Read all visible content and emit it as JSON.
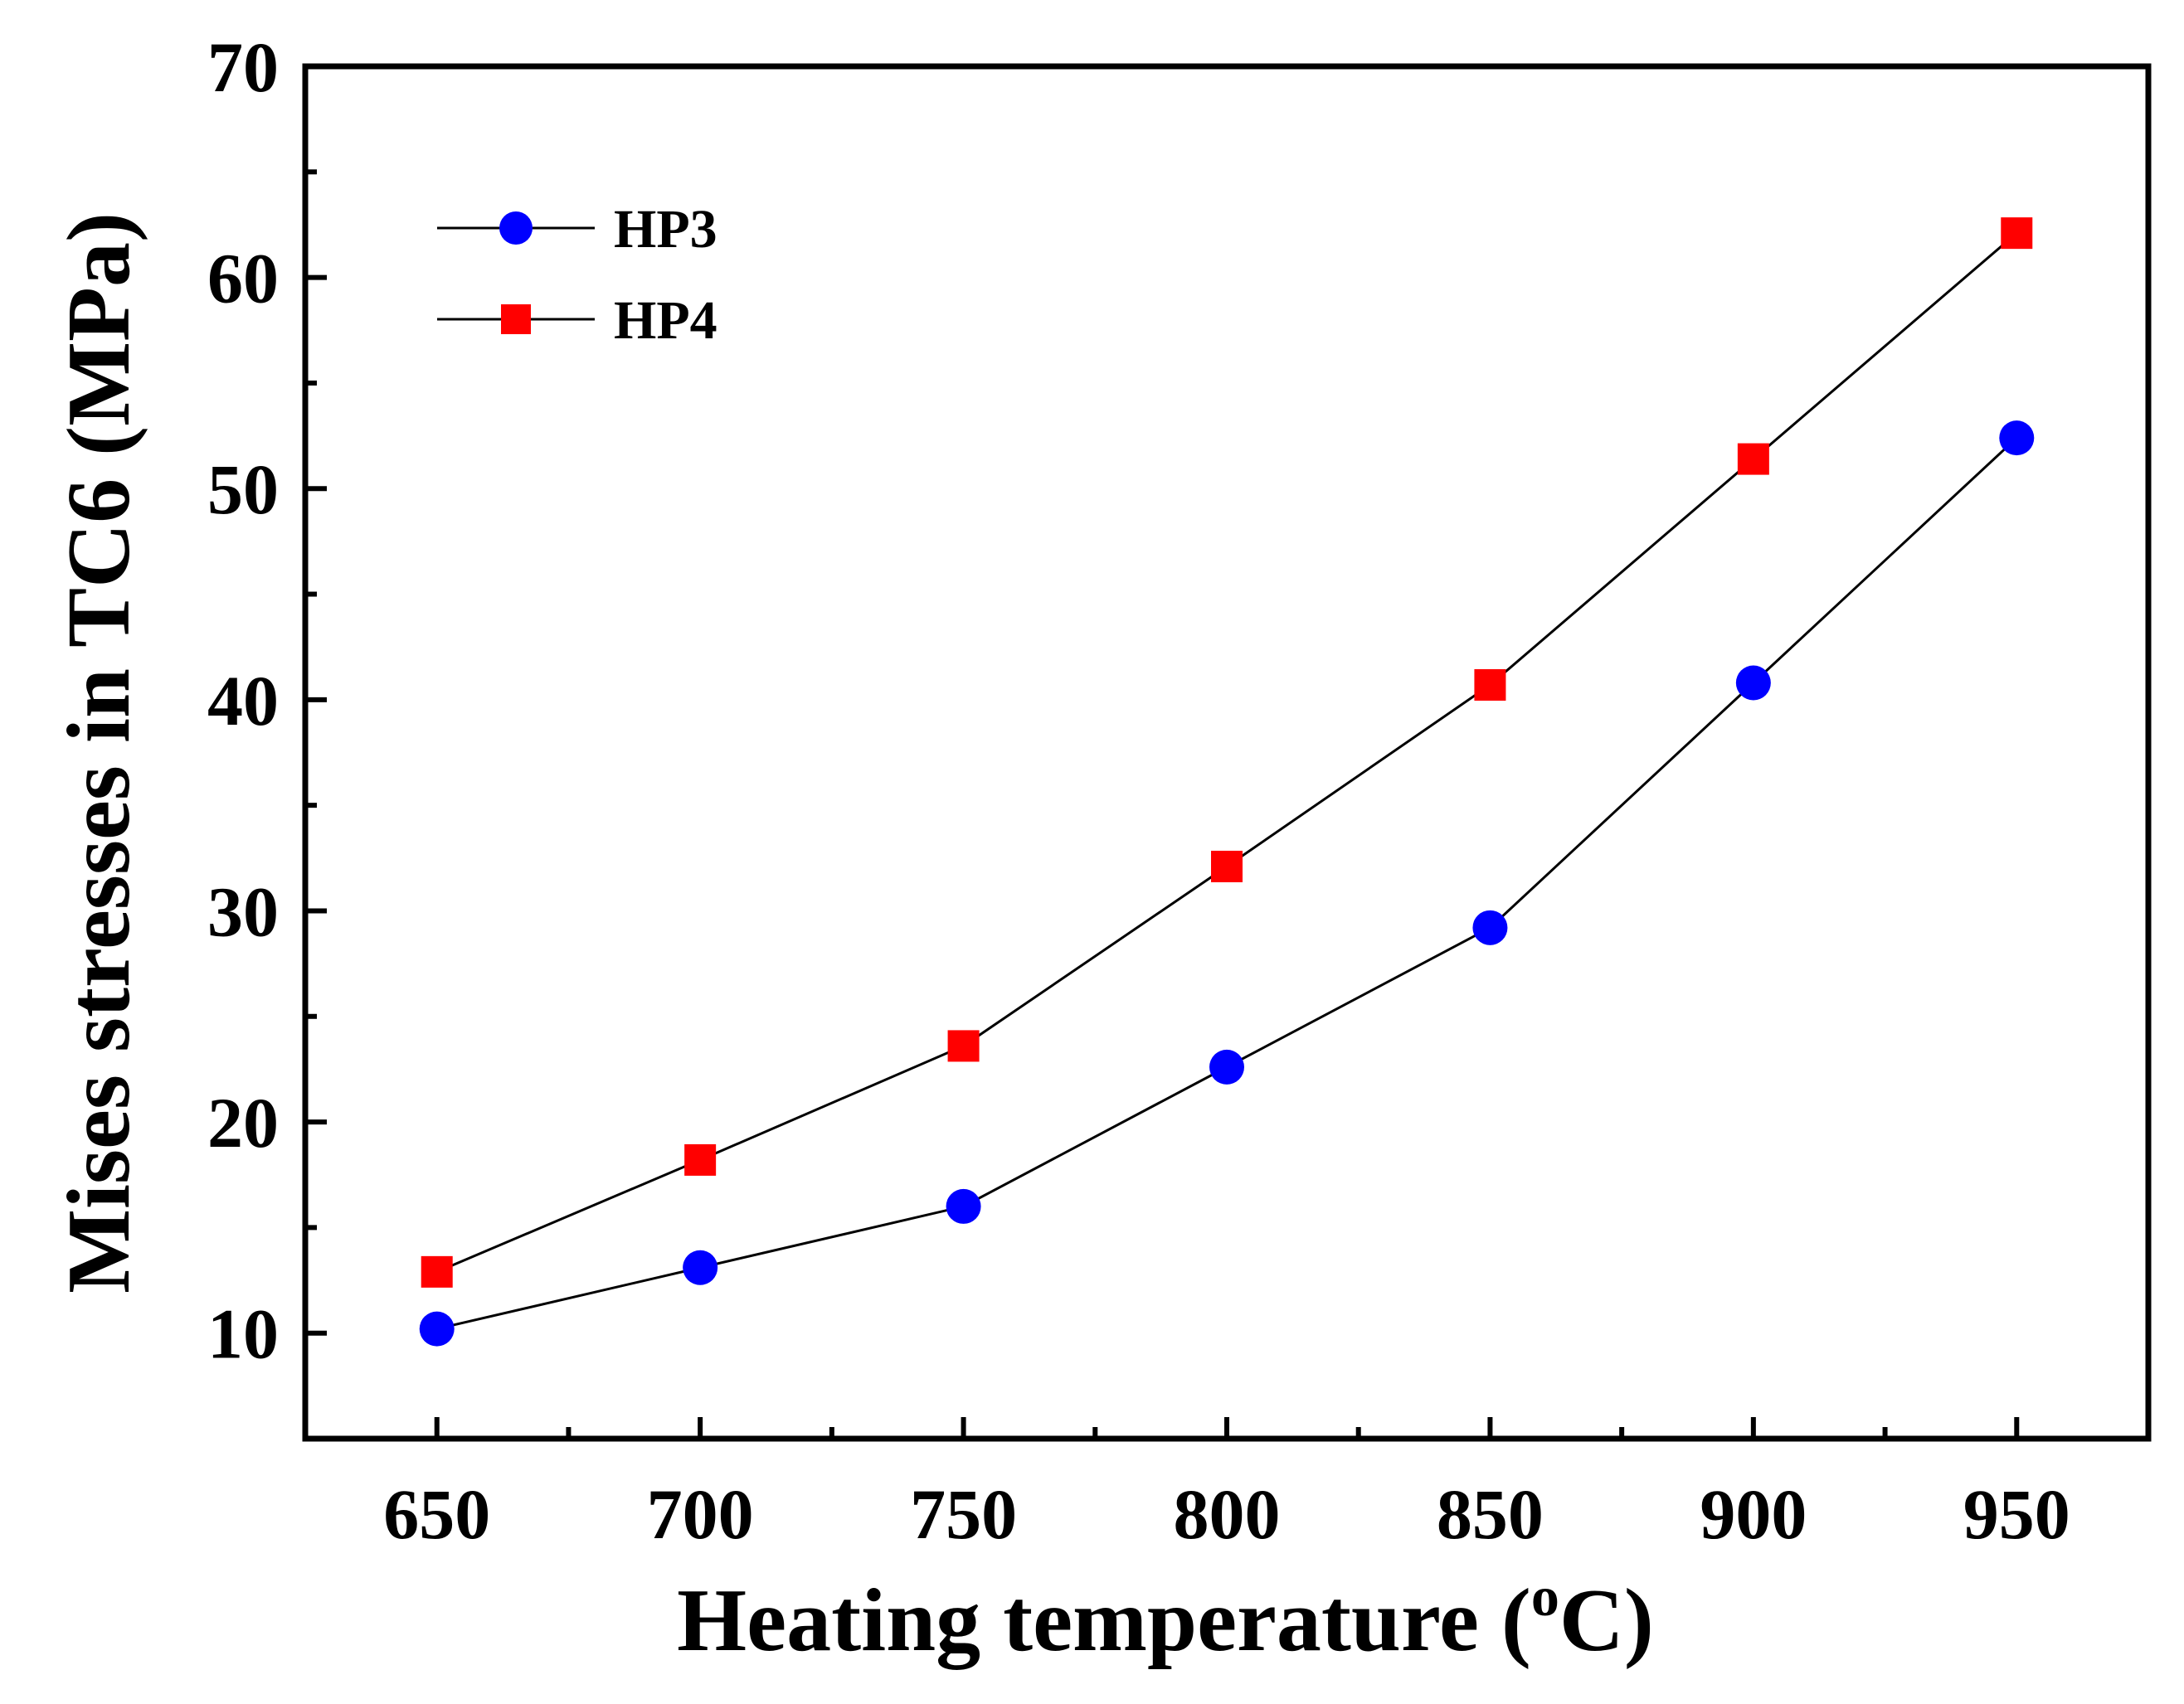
{
  "chart_data": {
    "type": "line",
    "xlabel": "Heating temperature (",
    "xlabel_sup": "o",
    "xlabel_unit": "C)",
    "ylabel": "Mises stresses in TC6 (MPa)",
    "x": [
      650,
      700,
      750,
      800,
      850,
      900,
      950
    ],
    "xlim": [
      625,
      975
    ],
    "ylim": [
      5,
      70
    ],
    "xticks": [
      650,
      700,
      750,
      800,
      850,
      900,
      950
    ],
    "yticks": [
      10,
      20,
      30,
      40,
      50,
      60,
      70
    ],
    "grid": false,
    "legend_position": "top-left",
    "series": [
      {
        "name": "HP3",
        "marker": "circle",
        "color": "#0000ff",
        "values": [
          10.2,
          13.1,
          16.0,
          22.6,
          29.2,
          40.8,
          52.4
        ]
      },
      {
        "name": "HP4",
        "marker": "square",
        "color": "#ff0000",
        "values": [
          12.9,
          18.2,
          23.6,
          32.1,
          40.7,
          51.4,
          62.1
        ]
      }
    ]
  }
}
